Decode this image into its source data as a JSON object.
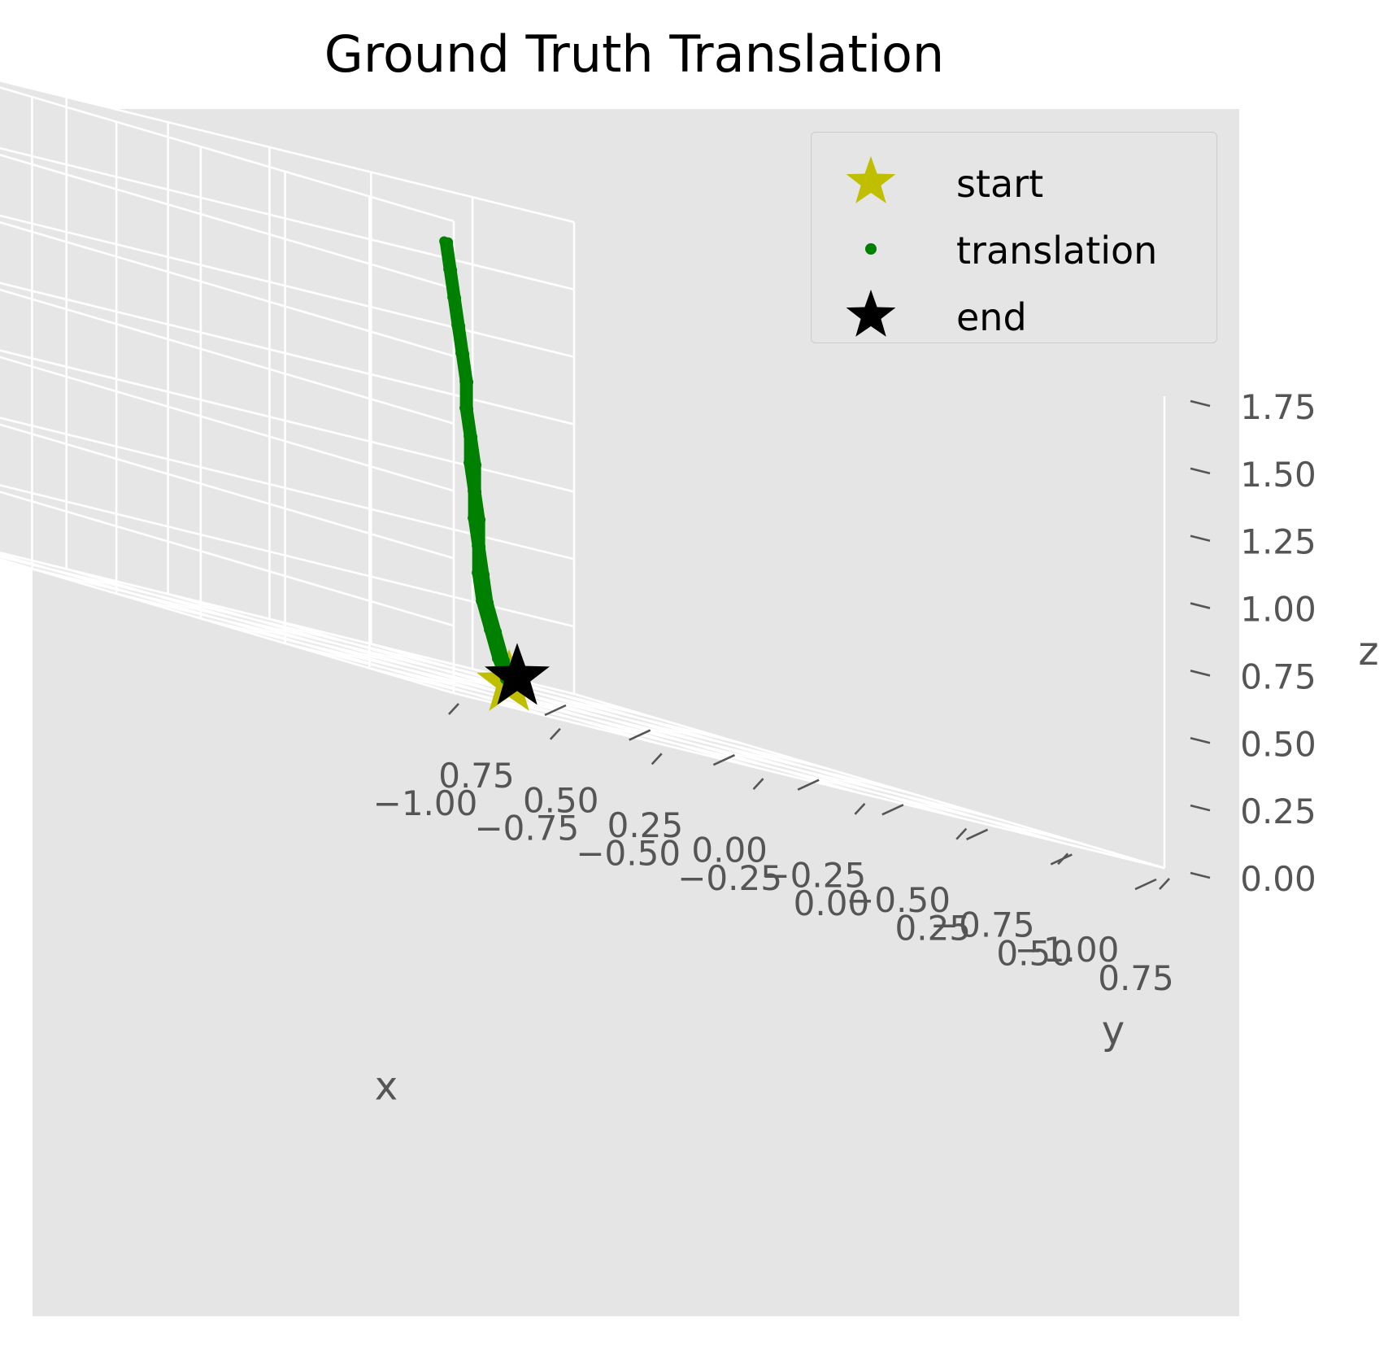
{
  "chart_data": {
    "type": "scatter",
    "projection": "3d",
    "title": "Ground Truth Translation",
    "xlabel": "x",
    "ylabel": "y",
    "zlabel": "z",
    "xlim": [
      -1.0,
      0.75
    ],
    "ylim": [
      -1.0,
      0.75
    ],
    "zlim": [
      0.0,
      1.75
    ],
    "xticks": [
      "−1.00",
      "−0.75",
      "−0.50",
      "−0.25",
      "0.00",
      "0.25",
      "0.50",
      "0.75"
    ],
    "yticks": [
      "−1.00",
      "−0.75",
      "−0.50",
      "−0.25",
      "0.00",
      "0.25",
      "0.50",
      "0.75"
    ],
    "zticks": [
      "0.00",
      "0.25",
      "0.50",
      "0.75",
      "1.00",
      "1.25",
      "1.50",
      "1.75"
    ],
    "grid": true,
    "legend_position": "top-right",
    "series": [
      {
        "name": "start",
        "marker": "star",
        "color": "#bfbf00",
        "points": [
          [
            0.05,
            0.1,
            0.02
          ]
        ]
      },
      {
        "name": "translation",
        "marker": "dot",
        "color": "#008000",
        "points": [
          [
            0.05,
            0.1,
            0.02
          ],
          [
            0.04,
            0.1,
            0.1
          ],
          [
            0.02,
            0.1,
            0.2
          ],
          [
            0.0,
            0.1,
            0.3
          ],
          [
            -0.01,
            0.1,
            0.4
          ],
          [
            -0.02,
            0.1,
            0.5
          ],
          [
            -0.02,
            0.1,
            0.6
          ],
          [
            -0.03,
            0.1,
            0.7
          ],
          [
            -0.03,
            0.1,
            0.8
          ],
          [
            -0.04,
            0.1,
            0.9
          ],
          [
            -0.05,
            0.1,
            1.0
          ],
          [
            -0.05,
            0.1,
            1.1
          ],
          [
            -0.06,
            0.1,
            1.2
          ],
          [
            -0.07,
            0.1,
            1.3
          ],
          [
            -0.08,
            0.1,
            1.4
          ],
          [
            -0.09,
            0.1,
            1.5
          ],
          [
            -0.1,
            0.1,
            1.6
          ],
          [
            -0.11,
            0.1,
            1.6
          ],
          [
            -0.1,
            0.1,
            1.5
          ],
          [
            -0.09,
            0.1,
            1.4
          ],
          [
            -0.08,
            0.1,
            1.3
          ],
          [
            -0.07,
            0.1,
            1.2
          ],
          [
            -0.06,
            0.1,
            1.1
          ],
          [
            -0.06,
            0.1,
            1.0
          ],
          [
            -0.05,
            0.1,
            0.9
          ],
          [
            -0.05,
            0.1,
            0.8
          ],
          [
            -0.04,
            0.1,
            0.7
          ],
          [
            -0.04,
            0.1,
            0.6
          ],
          [
            -0.03,
            0.1,
            0.5
          ],
          [
            -0.03,
            0.1,
            0.4
          ],
          [
            -0.02,
            0.1,
            0.3
          ],
          [
            0.0,
            0.1,
            0.2
          ],
          [
            0.02,
            0.1,
            0.1
          ],
          [
            0.04,
            0.1,
            0.03
          ]
        ]
      },
      {
        "name": "end",
        "marker": "star",
        "color": "#000000",
        "points": [
          [
            0.07,
            0.1,
            0.05
          ]
        ]
      }
    ]
  }
}
